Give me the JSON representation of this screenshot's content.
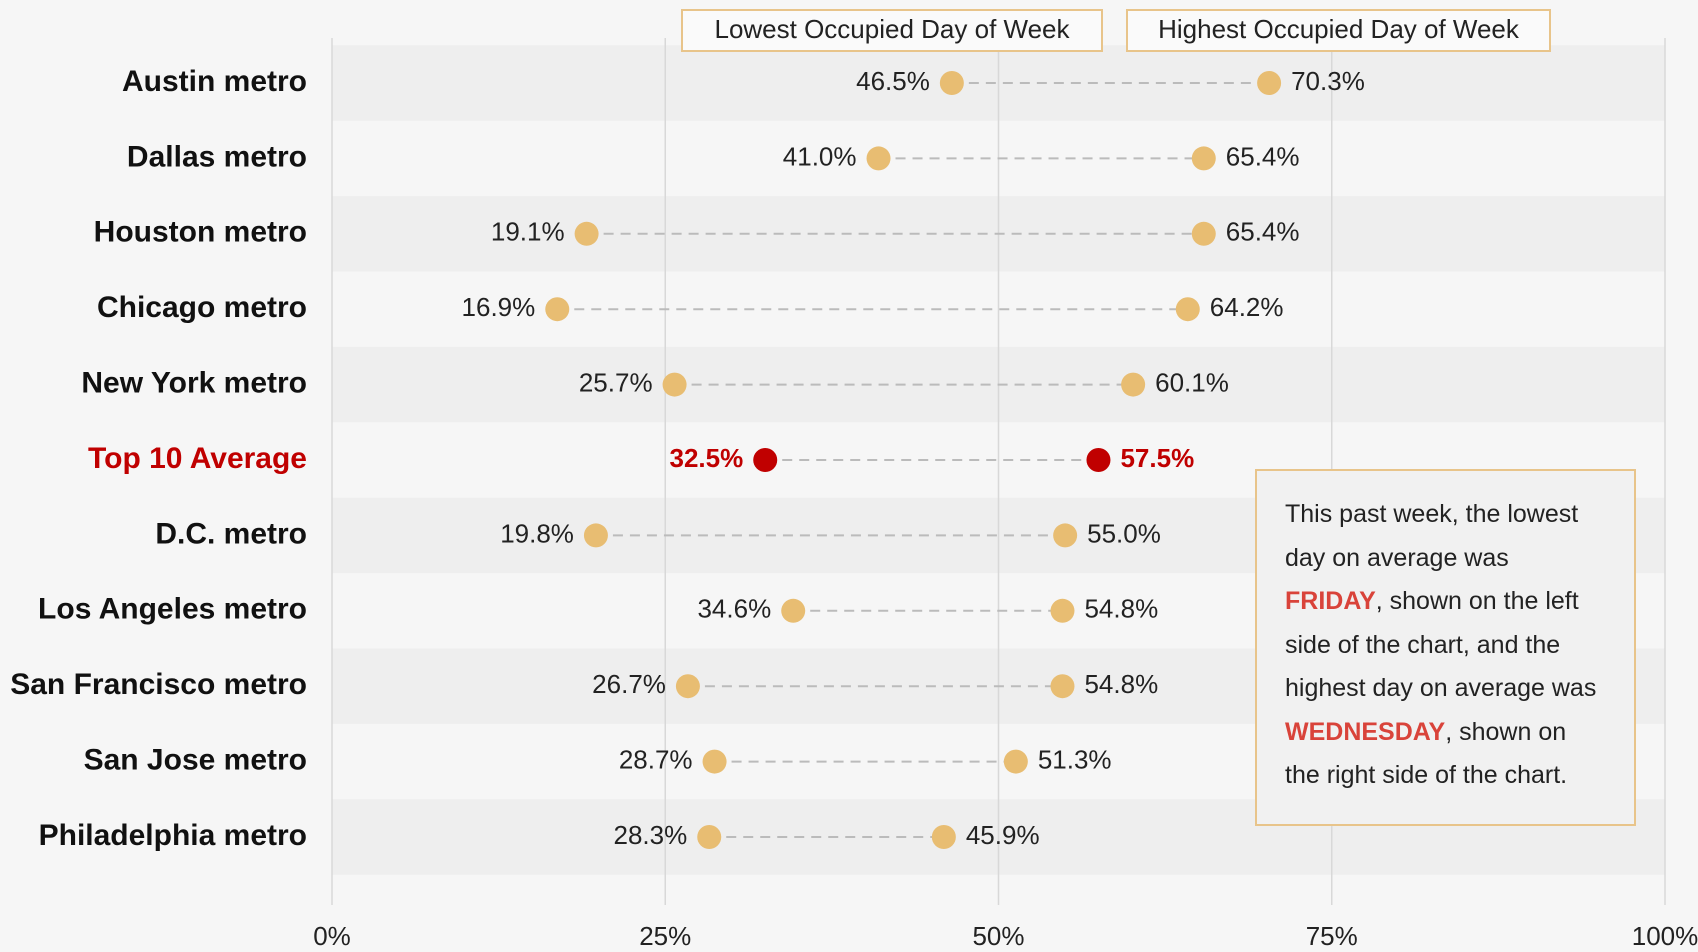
{
  "chart_data": {
    "type": "dumbbell",
    "categories": [
      "Austin metro",
      "Dallas metro",
      "Houston metro",
      "Chicago metro",
      "New York metro",
      "Top 10 Average",
      "D.C. metro",
      "Los Angeles metro",
      "San Francisco metro",
      "San Jose metro",
      "Philadelphia metro"
    ],
    "series": [
      {
        "name": "Lowest Occupied Day of Week",
        "color": "#e8bd72",
        "values": [
          46.5,
          41.0,
          19.1,
          16.9,
          25.7,
          32.5,
          19.8,
          34.6,
          26.7,
          28.7,
          28.3
        ],
        "value_labels": [
          "46.5%",
          "41.0%",
          "19.1%",
          "16.9%",
          "25.7%",
          "32.5%",
          "19.8%",
          "34.6%",
          "26.7%",
          "28.7%",
          "28.3%"
        ]
      },
      {
        "name": "Highest Occupied Day of Week",
        "color": "#e8bd72",
        "values": [
          70.3,
          65.4,
          65.4,
          64.2,
          60.1,
          57.5,
          55.0,
          54.8,
          54.8,
          51.3,
          45.9
        ],
        "value_labels": [
          "70.3%",
          "65.4%",
          "65.4%",
          "64.2%",
          "60.1%",
          "57.5%",
          "55.0%",
          "54.8%",
          "54.8%",
          "51.3%",
          "45.9%"
        ]
      }
    ],
    "highlight": {
      "index": 5,
      "color": "#c00000"
    },
    "xlim": [
      0,
      100
    ],
    "xticks": [
      {
        "value": 0,
        "label": "0%"
      },
      {
        "value": 25,
        "label": "25%"
      },
      {
        "value": 50,
        "label": "50%"
      },
      {
        "value": 75,
        "label": "75%"
      },
      {
        "value": 100,
        "label": "100%"
      }
    ],
    "grid": true,
    "annotation": [
      {
        "text": "This past week, the lowest day on average was "
      },
      {
        "text": "FRIDAY",
        "color": "#d9433a"
      },
      {
        "text": ", shown on the left side of the chart, and the highest day on average was "
      },
      {
        "text": "WEDNESDAY",
        "color": "#d9433a"
      },
      {
        "text": ", shown on the right side of the chart."
      }
    ]
  }
}
